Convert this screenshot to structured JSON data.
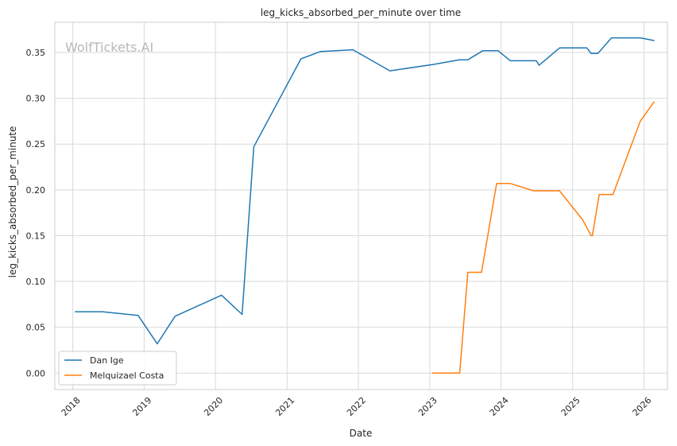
{
  "watermark": "WolfTickets.AI",
  "chart_data": {
    "type": "line",
    "title": "leg_kicks_absorbed_per_minute over time",
    "xlabel": "Date",
    "ylabel": "leg_kicks_absorbed_per_minute",
    "xlim": [
      "2017-10-01",
      "2026-05-01"
    ],
    "ylim": [
      -0.018,
      0.383
    ],
    "x_ticks": [
      "2018",
      "2019",
      "2020",
      "2021",
      "2022",
      "2023",
      "2024",
      "2025",
      "2026"
    ],
    "y_ticks": [
      "0.00",
      "0.05",
      "0.10",
      "0.15",
      "0.20",
      "0.25",
      "0.30",
      "0.35"
    ],
    "grid": true,
    "legend_position": "lower-left",
    "series": [
      {
        "name": "Dan Ige",
        "color": "#1f77b4",
        "points": [
          [
            "2018-01-14",
            0.067
          ],
          [
            "2018-06-01",
            0.067
          ],
          [
            "2018-12-01",
            0.063
          ],
          [
            "2019-03-09",
            0.032
          ],
          [
            "2019-06-08",
            0.062
          ],
          [
            "2020-02-01",
            0.085
          ],
          [
            "2020-05-16",
            0.064
          ],
          [
            "2020-07-15",
            0.247
          ],
          [
            "2021-03-13",
            0.343
          ],
          [
            "2021-06-19",
            0.351
          ],
          [
            "2021-12-04",
            0.353
          ],
          [
            "2022-06-11",
            0.33
          ],
          [
            "2023-01-21",
            0.337
          ],
          [
            "2023-06-01",
            0.342
          ],
          [
            "2023-07-15",
            0.342
          ],
          [
            "2023-09-30",
            0.352
          ],
          [
            "2023-12-16",
            0.352
          ],
          [
            "2024-02-17",
            0.341
          ],
          [
            "2024-06-29",
            0.341
          ],
          [
            "2024-07-13",
            0.336
          ],
          [
            "2024-10-26",
            0.355
          ],
          [
            "2025-03-15",
            0.355
          ],
          [
            "2025-04-05",
            0.349
          ],
          [
            "2025-05-10",
            0.349
          ],
          [
            "2025-07-19",
            0.366
          ],
          [
            "2025-12-13",
            0.366
          ],
          [
            "2026-02-21",
            0.363
          ]
        ]
      },
      {
        "name": "Melquizael Costa",
        "color": "#ff7f0e",
        "points": [
          [
            "2023-01-14",
            0.0
          ],
          [
            "2023-06-03",
            0.0
          ],
          [
            "2023-07-15",
            0.11
          ],
          [
            "2023-09-23",
            0.11
          ],
          [
            "2023-12-09",
            0.207
          ],
          [
            "2024-02-17",
            0.207
          ],
          [
            "2024-06-15",
            0.199
          ],
          [
            "2024-10-26",
            0.199
          ],
          [
            "2025-02-22",
            0.167
          ],
          [
            "2025-04-05",
            0.15
          ],
          [
            "2025-04-12",
            0.15
          ],
          [
            "2025-05-17",
            0.195
          ],
          [
            "2025-07-26",
            0.195
          ],
          [
            "2025-12-13",
            0.275
          ],
          [
            "2026-02-21",
            0.296
          ]
        ]
      }
    ]
  }
}
